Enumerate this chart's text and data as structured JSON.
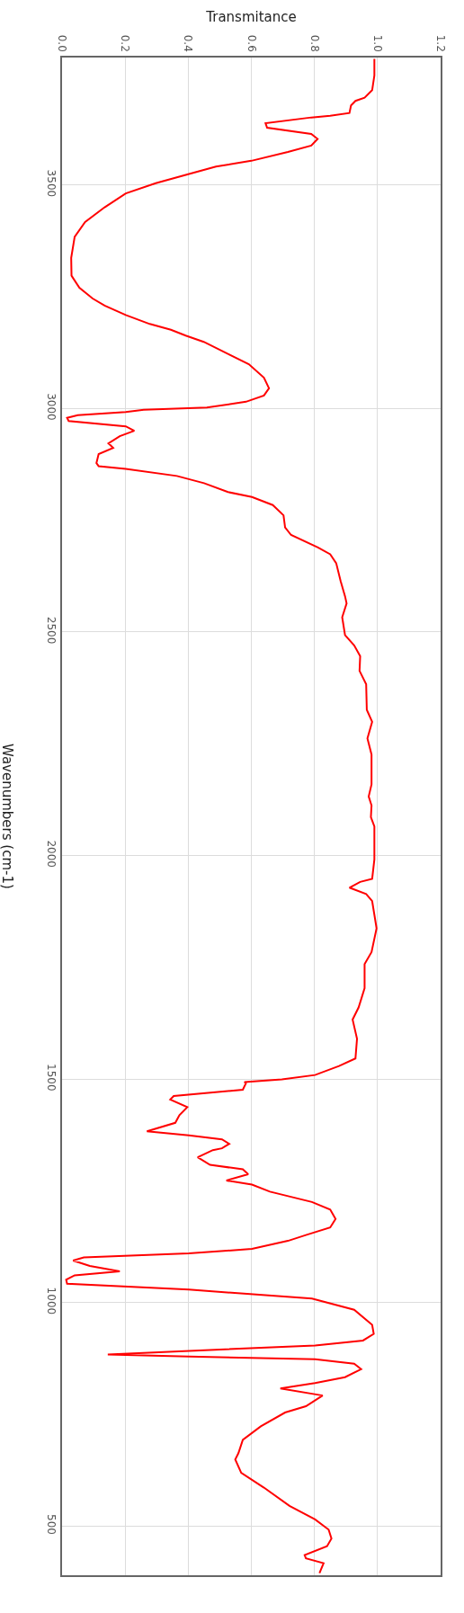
{
  "chart_data": {
    "type": "line",
    "orientation": "horizontal",
    "xlabel": "Transmitance",
    "ylabel": "Wavenumbers (cm-1)",
    "xlim": [
      0,
      1.2
    ],
    "xticks": [
      {
        "value": 0,
        "label": "0.0"
      },
      {
        "value": 0.2,
        "label": "0.2"
      },
      {
        "value": 0.4,
        "label": "0.4"
      },
      {
        "value": 0.6,
        "label": "0.6"
      },
      {
        "value": 0.8,
        "label": "0.8"
      },
      {
        "value": 1,
        "label": "1.0"
      },
      {
        "value": 1.2,
        "label": "1.2"
      }
    ],
    "ylim": [
      390,
      3785
    ],
    "yticks": [
      500,
      1000,
      1500,
      2000,
      2500,
      3000,
      3500
    ],
    "grid": true,
    "marker": "none",
    "line_style": "solid",
    "series": [
      {
        "color": "#ff0000",
        "x": [
          3782,
          3745,
          3712,
          3695,
          3688,
          3678,
          3661,
          3655,
          3651,
          3638,
          3628,
          3614,
          3603,
          3588,
          3574,
          3554,
          3541,
          3524,
          3504,
          3481,
          3450,
          3417,
          3384,
          3337,
          3297,
          3270,
          3246,
          3230,
          3209,
          3189,
          3176,
          3163,
          3149,
          3122,
          3099,
          3069,
          3045,
          3029,
          3015,
          3002,
          2997,
          2992,
          2985,
          2979,
          2972,
          2960,
          2950,
          2938,
          2922,
          2912,
          2898,
          2878,
          2871,
          2865,
          2849,
          2833,
          2813,
          2802,
          2784,
          2761,
          2734,
          2717,
          2689,
          2674,
          2654,
          2614,
          2580,
          2564,
          2533,
          2493,
          2470,
          2446,
          2413,
          2383,
          2326,
          2299,
          2262,
          2226,
          2159,
          2132,
          2112,
          2086,
          2065,
          1991,
          1948,
          1941,
          1928,
          1914,
          1898,
          1837,
          1784,
          1757,
          1703,
          1660,
          1633,
          1590,
          1546,
          1529,
          1509,
          1499,
          1493,
          1491,
          1476,
          1462,
          1454,
          1437,
          1419,
          1402,
          1383,
          1374,
          1365,
          1355,
          1345,
          1341,
          1325,
          1308,
          1298,
          1287,
          1273,
          1264,
          1248,
          1225,
          1208,
          1187,
          1168,
          1151,
          1138,
          1120,
          1110,
          1101,
          1094,
          1082,
          1070,
          1061,
          1051,
          1042,
          1029,
          1009,
          984,
          950,
          930,
          915,
          904,
          884,
          879,
          873,
          863,
          851,
          833,
          820,
          808,
          792,
          768,
          754,
          723,
          693,
          663,
          649,
          619,
          586,
          545,
          515,
          492,
          472,
          455,
          435,
          428,
          417,
          395
        ],
        "values": [
          0.99,
          0.99,
          0.983,
          0.959,
          0.93,
          0.916,
          0.911,
          0.85,
          0.79,
          0.645,
          0.65,
          0.79,
          0.81,
          0.79,
          0.716,
          0.6,
          0.488,
          0.4,
          0.297,
          0.202,
          0.135,
          0.073,
          0.04,
          0.029,
          0.03,
          0.055,
          0.097,
          0.135,
          0.202,
          0.278,
          0.345,
          0.392,
          0.449,
          0.526,
          0.592,
          0.64,
          0.656,
          0.64,
          0.583,
          0.459,
          0.259,
          0.202,
          0.05,
          0.016,
          0.021,
          0.202,
          0.229,
          0.183,
          0.147,
          0.162,
          0.116,
          0.109,
          0.116,
          0.202,
          0.364,
          0.45,
          0.526,
          0.602,
          0.668,
          0.702,
          0.707,
          0.726,
          0.811,
          0.85,
          0.869,
          0.883,
          0.897,
          0.902,
          0.888,
          0.897,
          0.926,
          0.945,
          0.943,
          0.964,
          0.966,
          0.983,
          0.968,
          0.981,
          0.981,
          0.972,
          0.981,
          0.979,
          0.99,
          0.99,
          0.983,
          0.945,
          0.911,
          0.964,
          0.983,
          0.997,
          0.981,
          0.959,
          0.959,
          0.94,
          0.921,
          0.935,
          0.93,
          0.878,
          0.802,
          0.697,
          0.578,
          0.583,
          0.573,
          0.354,
          0.343,
          0.397,
          0.372,
          0.359,
          0.269,
          0.402,
          0.507,
          0.53,
          0.507,
          0.478,
          0.43,
          0.469,
          0.573,
          0.59,
          0.521,
          0.602,
          0.659,
          0.792,
          0.85,
          0.867,
          0.85,
          0.773,
          0.716,
          0.602,
          0.402,
          0.069,
          0.035,
          0.088,
          0.183,
          0.04,
          0.013,
          0.016,
          0.402,
          0.792,
          0.926,
          0.983,
          0.988,
          0.954,
          0.802,
          0.145,
          0.402,
          0.802,
          0.926,
          0.948,
          0.897,
          0.802,
          0.692,
          0.826,
          0.773,
          0.707,
          0.63,
          0.573,
          0.559,
          0.549,
          0.568,
          0.64,
          0.721,
          0.802,
          0.845,
          0.854,
          0.84,
          0.769,
          0.773,
          0.829,
          0.816
        ]
      }
    ]
  }
}
